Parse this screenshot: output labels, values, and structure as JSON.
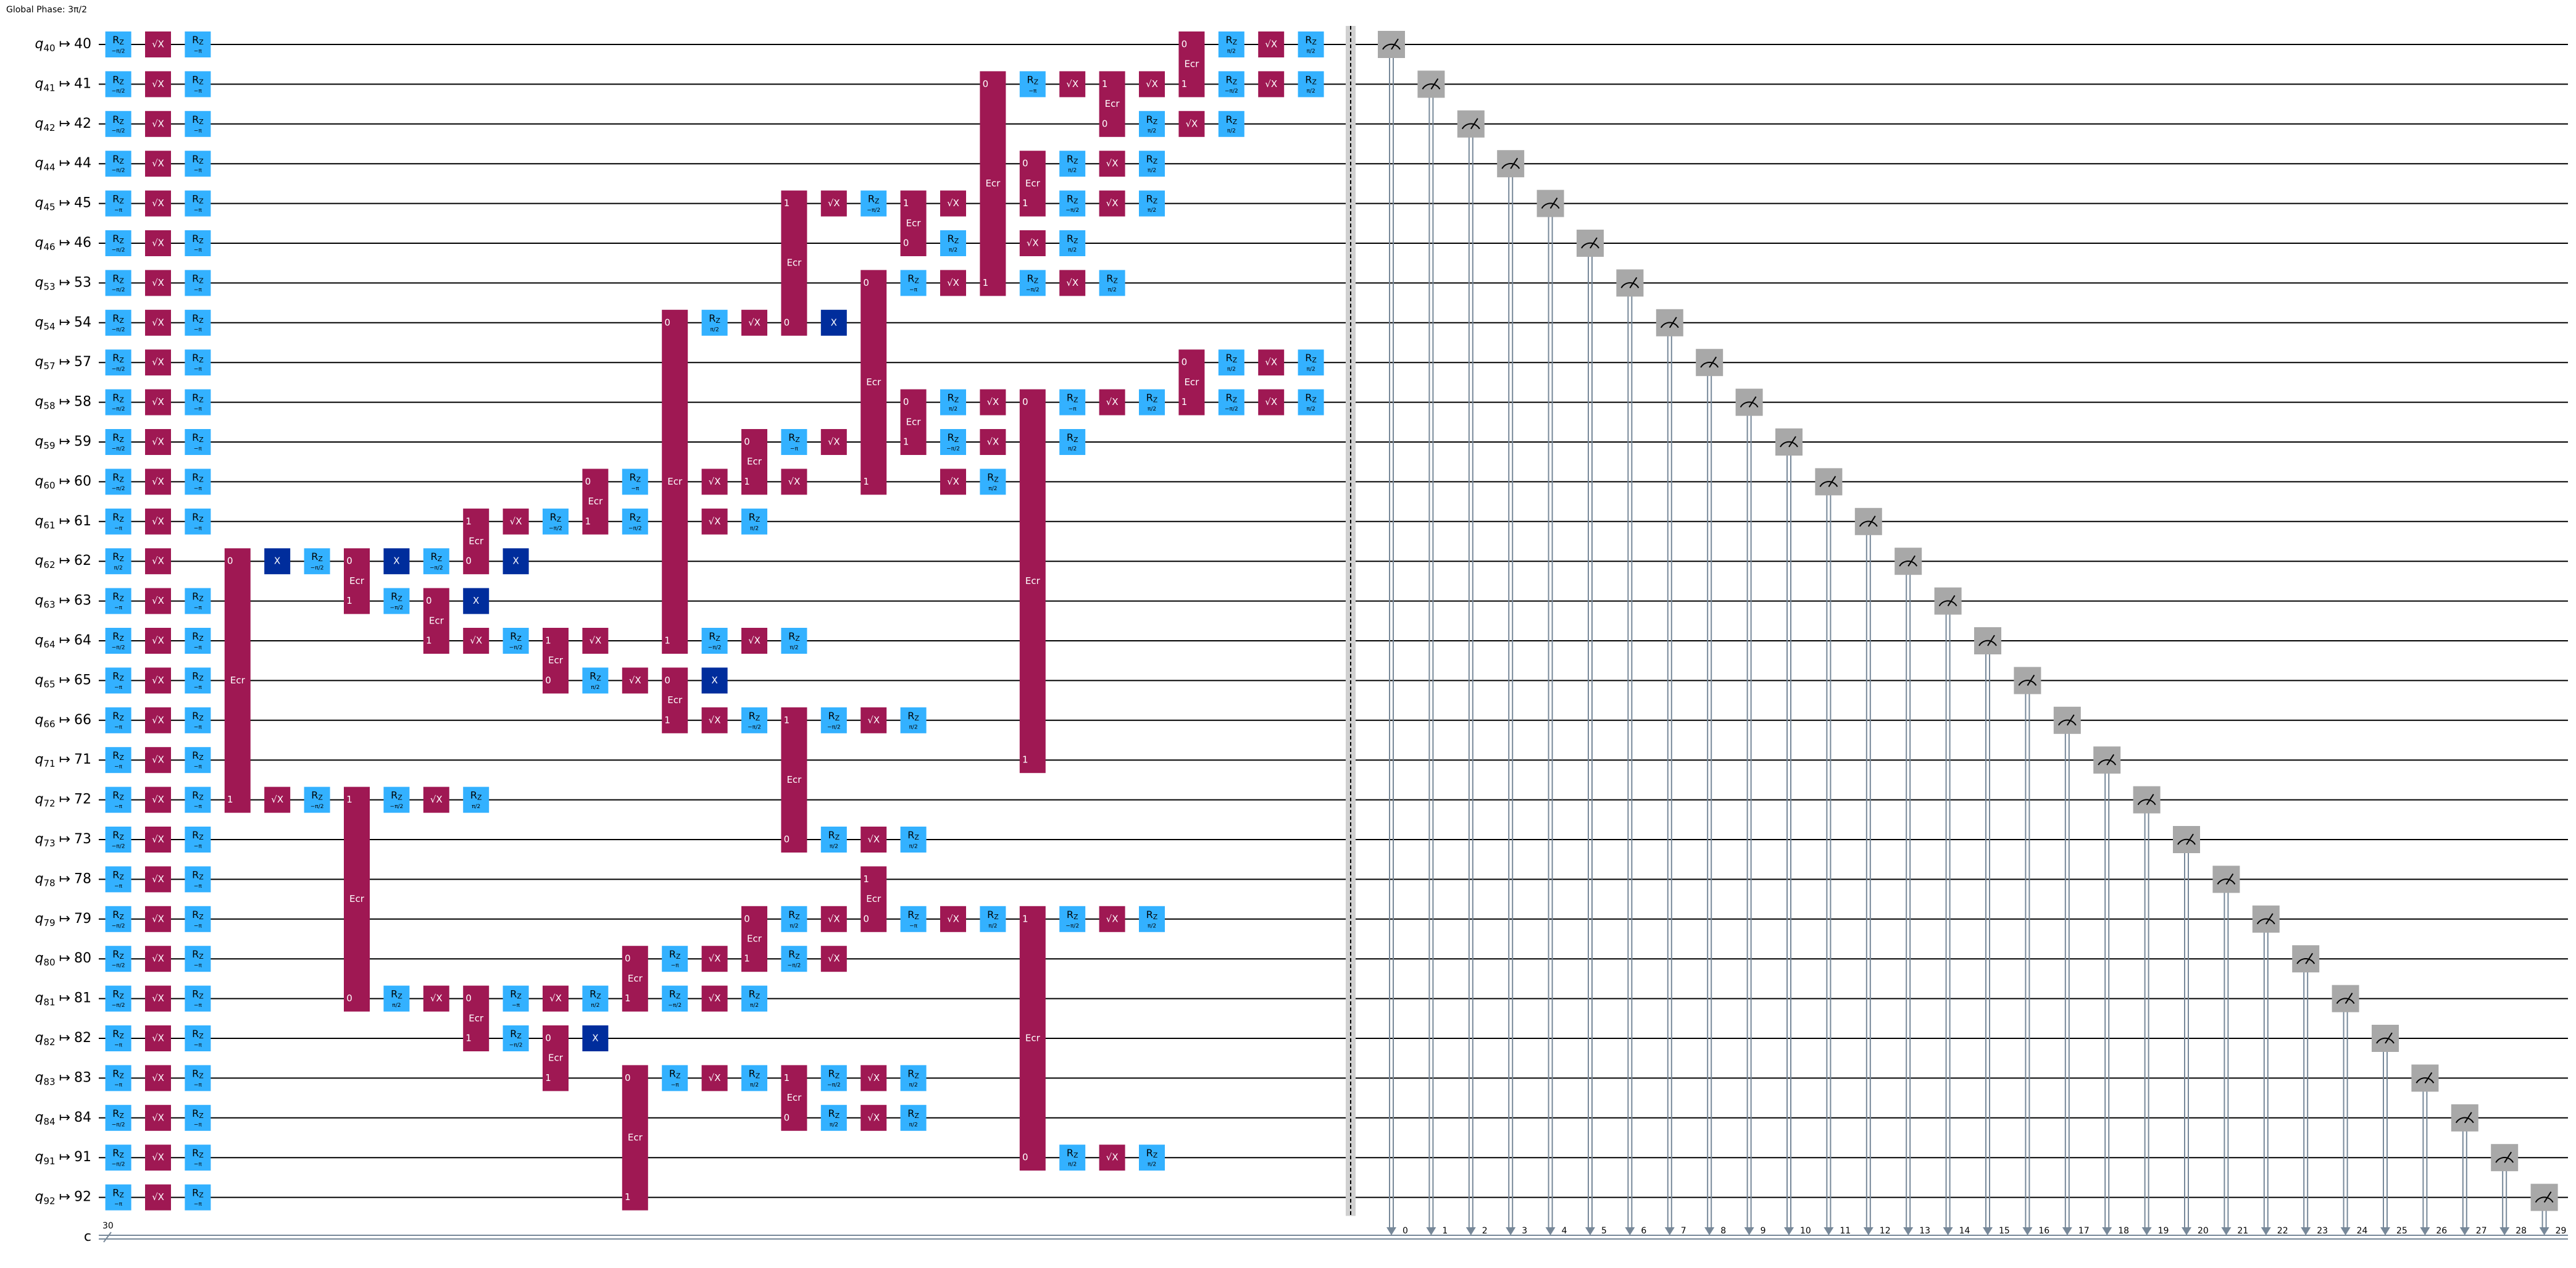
{
  "global_phase": "Global Phase: 3π/2",
  "map_symbol": "↦",
  "gate_names": {
    "rz": "R",
    "rz_sub": "Z",
    "sx": "√X",
    "x": "X",
    "ecr": "Ecr"
  },
  "wires": [
    {
      "reg": "q",
      "index": "40",
      "target": "40"
    },
    {
      "reg": "q",
      "index": "41",
      "target": "41"
    },
    {
      "reg": "q",
      "index": "42",
      "target": "42"
    },
    {
      "reg": "q",
      "index": "44",
      "target": "44"
    },
    {
      "reg": "q",
      "index": "45",
      "target": "45"
    },
    {
      "reg": "q",
      "index": "46",
      "target": "46"
    },
    {
      "reg": "q",
      "index": "53",
      "target": "53"
    },
    {
      "reg": "q",
      "index": "54",
      "target": "54"
    },
    {
      "reg": "q",
      "index": "57",
      "target": "57"
    },
    {
      "reg": "q",
      "index": "58",
      "target": "58"
    },
    {
      "reg": "q",
      "index": "59",
      "target": "59"
    },
    {
      "reg": "q",
      "index": "60",
      "target": "60"
    },
    {
      "reg": "q",
      "index": "61",
      "target": "61"
    },
    {
      "reg": "q",
      "index": "62",
      "target": "62"
    },
    {
      "reg": "q",
      "index": "63",
      "target": "63"
    },
    {
      "reg": "q",
      "index": "64",
      "target": "64"
    },
    {
      "reg": "q",
      "index": "65",
      "target": "65"
    },
    {
      "reg": "q",
      "index": "66",
      "target": "66"
    },
    {
      "reg": "q",
      "index": "71",
      "target": "71"
    },
    {
      "reg": "q",
      "index": "72",
      "target": "72"
    },
    {
      "reg": "q",
      "index": "73",
      "target": "73"
    },
    {
      "reg": "q",
      "index": "78",
      "target": "78"
    },
    {
      "reg": "q",
      "index": "79",
      "target": "79"
    },
    {
      "reg": "q",
      "index": "80",
      "target": "80"
    },
    {
      "reg": "q",
      "index": "81",
      "target": "81"
    },
    {
      "reg": "q",
      "index": "82",
      "target": "82"
    },
    {
      "reg": "q",
      "index": "83",
      "target": "83"
    },
    {
      "reg": "q",
      "index": "84",
      "target": "84"
    },
    {
      "reg": "q",
      "index": "91",
      "target": "91"
    },
    {
      "reg": "q",
      "index": "92",
      "target": "92"
    }
  ],
  "classical": {
    "name": "c",
    "size": "30",
    "bits": [
      "0",
      "1",
      "2",
      "3",
      "4",
      "5",
      "6",
      "7",
      "8",
      "9",
      "10",
      "11",
      "12",
      "13",
      "14",
      "15",
      "16",
      "17",
      "18",
      "19",
      "20",
      "21",
      "22",
      "23",
      "24",
      "25",
      "26",
      "27",
      "28",
      "29"
    ]
  },
  "ops": [
    [
      0,
      "rz",
      0,
      "−π/2"
    ],
    [
      1,
      "sx",
      0
    ],
    [
      2,
      "rz",
      0,
      "−π"
    ],
    [
      0,
      "rz",
      1,
      "−π/2"
    ],
    [
      1,
      "sx",
      1
    ],
    [
      2,
      "rz",
      1,
      "−π"
    ],
    [
      0,
      "rz",
      2,
      "−π/2"
    ],
    [
      1,
      "sx",
      2
    ],
    [
      2,
      "rz",
      2,
      "−π"
    ],
    [
      0,
      "rz",
      3,
      "−π/2"
    ],
    [
      1,
      "sx",
      3
    ],
    [
      2,
      "rz",
      3,
      "−π"
    ],
    [
      0,
      "rz",
      4,
      "−π"
    ],
    [
      1,
      "sx",
      4
    ],
    [
      2,
      "rz",
      4,
      "−π"
    ],
    [
      0,
      "rz",
      5,
      "−π/2"
    ],
    [
      1,
      "sx",
      5
    ],
    [
      2,
      "rz",
      5,
      "−π"
    ],
    [
      0,
      "rz",
      6,
      "−π/2"
    ],
    [
      1,
      "sx",
      6
    ],
    [
      2,
      "rz",
      6,
      "−π"
    ],
    [
      0,
      "rz",
      7,
      "−π/2"
    ],
    [
      1,
      "sx",
      7
    ],
    [
      2,
      "rz",
      7,
      "−π"
    ],
    [
      0,
      "rz",
      8,
      "−π/2"
    ],
    [
      1,
      "sx",
      8
    ],
    [
      2,
      "rz",
      8,
      "−π"
    ],
    [
      0,
      "rz",
      9,
      "−π/2"
    ],
    [
      1,
      "sx",
      9
    ],
    [
      2,
      "rz",
      9,
      "−π"
    ],
    [
      0,
      "rz",
      10,
      "−π/2"
    ],
    [
      1,
      "sx",
      10
    ],
    [
      2,
      "rz",
      10,
      "−π"
    ],
    [
      0,
      "rz",
      11,
      "−π/2"
    ],
    [
      1,
      "sx",
      11
    ],
    [
      2,
      "rz",
      11,
      "−π"
    ],
    [
      0,
      "rz",
      12,
      "−π"
    ],
    [
      1,
      "sx",
      12
    ],
    [
      2,
      "rz",
      12,
      "−π"
    ],
    [
      0,
      "rz",
      13,
      "π/2"
    ],
    [
      1,
      "sx",
      13
    ],
    [
      0,
      "rz",
      14,
      "−π"
    ],
    [
      1,
      "sx",
      14
    ],
    [
      2,
      "rz",
      14,
      "−π"
    ],
    [
      0,
      "rz",
      15,
      "−π/2"
    ],
    [
      1,
      "sx",
      15
    ],
    [
      2,
      "rz",
      15,
      "−π"
    ],
    [
      0,
      "rz",
      16,
      "−π"
    ],
    [
      1,
      "sx",
      16
    ],
    [
      2,
      "rz",
      16,
      "−π"
    ],
    [
      0,
      "rz",
      17,
      "−π"
    ],
    [
      1,
      "sx",
      17
    ],
    [
      2,
      "rz",
      17,
      "−π"
    ],
    [
      0,
      "rz",
      18,
      "−π"
    ],
    [
      1,
      "sx",
      18
    ],
    [
      2,
      "rz",
      18,
      "−π"
    ],
    [
      0,
      "rz",
      19,
      "−π"
    ],
    [
      1,
      "sx",
      19
    ],
    [
      2,
      "rz",
      19,
      "−π"
    ],
    [
      0,
      "rz",
      20,
      "−π/2"
    ],
    [
      1,
      "sx",
      20
    ],
    [
      2,
      "rz",
      20,
      "−π"
    ],
    [
      0,
      "rz",
      21,
      "−π"
    ],
    [
      1,
      "sx",
      21
    ],
    [
      2,
      "rz",
      21,
      "−π"
    ],
    [
      0,
      "rz",
      22,
      "−π/2"
    ],
    [
      1,
      "sx",
      22
    ],
    [
      2,
      "rz",
      22,
      "−π"
    ],
    [
      0,
      "rz",
      23,
      "−π/2"
    ],
    [
      1,
      "sx",
      23
    ],
    [
      2,
      "rz",
      23,
      "−π"
    ],
    [
      0,
      "rz",
      24,
      "−π/2"
    ],
    [
      1,
      "sx",
      24
    ],
    [
      2,
      "rz",
      24,
      "−π"
    ],
    [
      0,
      "rz",
      25,
      "−π"
    ],
    [
      1,
      "sx",
      25
    ],
    [
      2,
      "rz",
      25,
      "−π"
    ],
    [
      0,
      "rz",
      26,
      "−π"
    ],
    [
      1,
      "sx",
      26
    ],
    [
      2,
      "rz",
      26,
      "−π"
    ],
    [
      0,
      "rz",
      27,
      "−π/2"
    ],
    [
      1,
      "sx",
      27
    ],
    [
      2,
      "rz",
      27,
      "−π"
    ],
    [
      0,
      "rz",
      28,
      "−π/2"
    ],
    [
      1,
      "sx",
      28
    ],
    [
      2,
      "rz",
      28,
      "−π"
    ],
    [
      0,
      "rz",
      29,
      "−π"
    ],
    [
      1,
      "sx",
      29
    ],
    [
      2,
      "rz",
      29,
      "−π"
    ],
    [
      3,
      "ecr",
      [
        13,
        19
      ],
      [
        "0",
        "1"
      ]
    ],
    [
      4,
      "x",
      13
    ],
    [
      4,
      "sx",
      19
    ],
    [
      5,
      "rz",
      13,
      "−π/2"
    ],
    [
      5,
      "rz",
      19,
      "−π/2"
    ],
    [
      6,
      "ecr",
      [
        13,
        14
      ],
      [
        "0",
        "1"
      ]
    ],
    [
      6,
      "ecr",
      [
        19,
        24
      ],
      [
        "1",
        "0"
      ]
    ],
    [
      7,
      "x",
      13
    ],
    [
      7,
      "rz",
      14,
      "−π/2"
    ],
    [
      7,
      "rz",
      19,
      "−π/2"
    ],
    [
      7,
      "rz",
      24,
      "π/2"
    ],
    [
      8,
      "rz",
      13,
      "−π/2"
    ],
    [
      8,
      "ecr",
      [
        14,
        15
      ],
      [
        "0",
        "1"
      ]
    ],
    [
      8,
      "sx",
      19
    ],
    [
      8,
      "sx",
      24
    ],
    [
      9,
      "ecr",
      [
        12,
        13
      ],
      [
        "1",
        "0"
      ]
    ],
    [
      9,
      "x",
      14
    ],
    [
      9,
      "sx",
      15
    ],
    [
      9,
      "rz",
      19,
      "π/2"
    ],
    [
      9,
      "ecr",
      [
        24,
        25
      ],
      [
        "0",
        "1"
      ]
    ],
    [
      10,
      "sx",
      12
    ],
    [
      10,
      "x",
      13
    ],
    [
      10,
      "rz",
      15,
      "−π/2"
    ],
    [
      10,
      "rz",
      24,
      "−π"
    ],
    [
      10,
      "rz",
      25,
      "−π/2"
    ],
    [
      11,
      "rz",
      12,
      "−π/2"
    ],
    [
      11,
      "ecr",
      [
        15,
        16
      ],
      [
        "1",
        "0"
      ]
    ],
    [
      11,
      "sx",
      24
    ],
    [
      11,
      "ecr",
      [
        25,
        26
      ],
      [
        "0",
        "1"
      ]
    ],
    [
      12,
      "ecr",
      [
        11,
        12
      ],
      [
        "0",
        "1"
      ]
    ],
    [
      12,
      "sx",
      15
    ],
    [
      12,
      "rz",
      16,
      "π/2"
    ],
    [
      12,
      "rz",
      24,
      "π/2"
    ],
    [
      12,
      "x",
      25
    ],
    [
      13,
      "rz",
      11,
      "−π"
    ],
    [
      13,
      "rz",
      12,
      "−π/2"
    ],
    [
      13,
      "sx",
      16
    ],
    [
      13,
      "ecr",
      [
        23,
        24
      ],
      [
        "0",
        "1"
      ]
    ],
    [
      13,
      "ecr",
      [
        26,
        29
      ],
      [
        "0",
        "1"
      ]
    ],
    [
      14,
      "ecr",
      [
        7,
        15
      ],
      [
        "0",
        "1"
      ]
    ],
    [
      14,
      "ecr",
      [
        16,
        17
      ],
      [
        "0",
        "1"
      ]
    ],
    [
      14,
      "rz",
      23,
      "−π"
    ],
    [
      14,
      "rz",
      24,
      "−π/2"
    ],
    [
      14,
      "rz",
      26,
      "−π"
    ],
    [
      15,
      "rz",
      7,
      "π/2"
    ],
    [
      15,
      "sx",
      11
    ],
    [
      15,
      "sx",
      12
    ],
    [
      15,
      "rz",
      15,
      "−π/2"
    ],
    [
      15,
      "x",
      16
    ],
    [
      15,
      "sx",
      17
    ],
    [
      15,
      "sx",
      23
    ],
    [
      15,
      "sx",
      24
    ],
    [
      15,
      "sx",
      26
    ],
    [
      16,
      "sx",
      7
    ],
    [
      16,
      "ecr",
      [
        10,
        11
      ],
      [
        "0",
        "1"
      ]
    ],
    [
      16,
      "rz",
      12,
      "π/2"
    ],
    [
      16,
      "sx",
      15
    ],
    [
      16,
      "rz",
      17,
      "−π/2"
    ],
    [
      16,
      "ecr",
      [
        22,
        23
      ],
      [
        "0",
        "1"
      ]
    ],
    [
      16,
      "rz",
      24,
      "π/2"
    ],
    [
      16,
      "rz",
      26,
      "π/2"
    ],
    [
      17,
      "ecr",
      [
        4,
        7
      ],
      [
        "1",
        "0"
      ]
    ],
    [
      17,
      "rz",
      10,
      "−π"
    ],
    [
      17,
      "sx",
      11
    ],
    [
      17,
      "rz",
      15,
      "π/2"
    ],
    [
      17,
      "ecr",
      [
        17,
        20
      ],
      [
        "1",
        "0"
      ]
    ],
    [
      17,
      "rz",
      22,
      "π/2"
    ],
    [
      17,
      "rz",
      23,
      "−π/2"
    ],
    [
      17,
      "ecr",
      [
        26,
        27
      ],
      [
        "1",
        "0"
      ]
    ],
    [
      18,
      "sx",
      4
    ],
    [
      18,
      "x",
      7
    ],
    [
      18,
      "sx",
      10
    ],
    [
      18,
      "rz",
      17,
      "−π/2"
    ],
    [
      18,
      "rz",
      20,
      "π/2"
    ],
    [
      18,
      "sx",
      22
    ],
    [
      18,
      "sx",
      23
    ],
    [
      18,
      "rz",
      26,
      "−π/2"
    ],
    [
      18,
      "rz",
      27,
      "π/2"
    ],
    [
      19,
      "rz",
      4,
      "−π/2"
    ],
    [
      19,
      "ecr",
      [
        6,
        11
      ],
      [
        "0",
        "1"
      ]
    ],
    [
      19,
      "sx",
      17
    ],
    [
      19,
      "sx",
      20
    ],
    [
      19,
      "ecr",
      [
        21,
        22
      ],
      [
        "1",
        "0"
      ]
    ],
    [
      19,
      "sx",
      26
    ],
    [
      19,
      "sx",
      27
    ],
    [
      20,
      "ecr",
      [
        4,
        5
      ],
      [
        "1",
        "0"
      ]
    ],
    [
      20,
      "rz",
      6,
      "−π"
    ],
    [
      20,
      "ecr",
      [
        9,
        10
      ],
      [
        "0",
        "1"
      ]
    ],
    [
      20,
      "rz",
      17,
      "π/2"
    ],
    [
      20,
      "rz",
      20,
      "π/2"
    ],
    [
      20,
      "rz",
      22,
      "−π"
    ],
    [
      20,
      "rz",
      26,
      "π/2"
    ],
    [
      20,
      "rz",
      27,
      "π/2"
    ],
    [
      21,
      "sx",
      4
    ],
    [
      21,
      "rz",
      5,
      "π/2"
    ],
    [
      21,
      "sx",
      6
    ],
    [
      21,
      "rz",
      9,
      "π/2"
    ],
    [
      21,
      "rz",
      10,
      "−π/2"
    ],
    [
      21,
      "sx",
      11
    ],
    [
      21,
      "sx",
      22
    ],
    [
      22,
      "ecr",
      [
        1,
        6
      ],
      [
        "0",
        "1"
      ]
    ],
    [
      22,
      "sx",
      9
    ],
    [
      22,
      "sx",
      10
    ],
    [
      22,
      "rz",
      11,
      "π/2"
    ],
    [
      22,
      "rz",
      22,
      "π/2"
    ],
    [
      23,
      "rz",
      1,
      "−π"
    ],
    [
      23,
      "ecr",
      [
        3,
        4
      ],
      [
        "0",
        "1"
      ]
    ],
    [
      23,
      "sx",
      5
    ],
    [
      23,
      "rz",
      6,
      "−π/2"
    ],
    [
      23,
      "ecr",
      [
        9,
        18
      ],
      [
        "0",
        "1"
      ]
    ],
    [
      23,
      "ecr",
      [
        22,
        28
      ],
      [
        "1",
        "0"
      ]
    ],
    [
      24,
      "sx",
      1
    ],
    [
      24,
      "rz",
      3,
      "π/2"
    ],
    [
      24,
      "rz",
      4,
      "−π/2"
    ],
    [
      24,
      "rz",
      5,
      "π/2"
    ],
    [
      24,
      "sx",
      6
    ],
    [
      24,
      "rz",
      9,
      "−π"
    ],
    [
      24,
      "rz",
      10,
      "π/2"
    ],
    [
      24,
      "rz",
      22,
      "−π/2"
    ],
    [
      24,
      "rz",
      28,
      "π/2"
    ],
    [
      25,
      "ecr",
      [
        1,
        2
      ],
      [
        "1",
        "0"
      ]
    ],
    [
      25,
      "sx",
      3
    ],
    [
      25,
      "sx",
      4
    ],
    [
      25,
      "rz",
      6,
      "π/2"
    ],
    [
      25,
      "sx",
      9
    ],
    [
      25,
      "sx",
      22
    ],
    [
      25,
      "sx",
      28
    ],
    [
      26,
      "sx",
      1
    ],
    [
      26,
      "rz",
      2,
      "π/2"
    ],
    [
      26,
      "rz",
      3,
      "π/2"
    ],
    [
      26,
      "rz",
      4,
      "π/2"
    ],
    [
      26,
      "rz",
      9,
      "π/2"
    ],
    [
      26,
      "rz",
      22,
      "π/2"
    ],
    [
      26,
      "rz",
      28,
      "π/2"
    ],
    [
      27,
      "ecr",
      [
        0,
        1
      ],
      [
        "0",
        "1"
      ]
    ],
    [
      27,
      "sx",
      2
    ],
    [
      27,
      "ecr",
      [
        8,
        9
      ],
      [
        "0",
        "1"
      ]
    ],
    [
      28,
      "rz",
      0,
      "π/2"
    ],
    [
      28,
      "rz",
      1,
      "−π/2"
    ],
    [
      28,
      "rz",
      2,
      "π/2"
    ],
    [
      28,
      "rz",
      8,
      "π/2"
    ],
    [
      28,
      "rz",
      9,
      "−π/2"
    ],
    [
      29,
      "sx",
      0
    ],
    [
      29,
      "sx",
      1
    ],
    [
      29,
      "sx",
      8
    ],
    [
      29,
      "sx",
      9
    ],
    [
      30,
      "rz",
      0,
      "π/2"
    ],
    [
      30,
      "rz",
      1,
      "π/2"
    ],
    [
      30,
      "rz",
      8,
      "π/2"
    ],
    [
      30,
      "rz",
      9,
      "π/2"
    ]
  ]
}
